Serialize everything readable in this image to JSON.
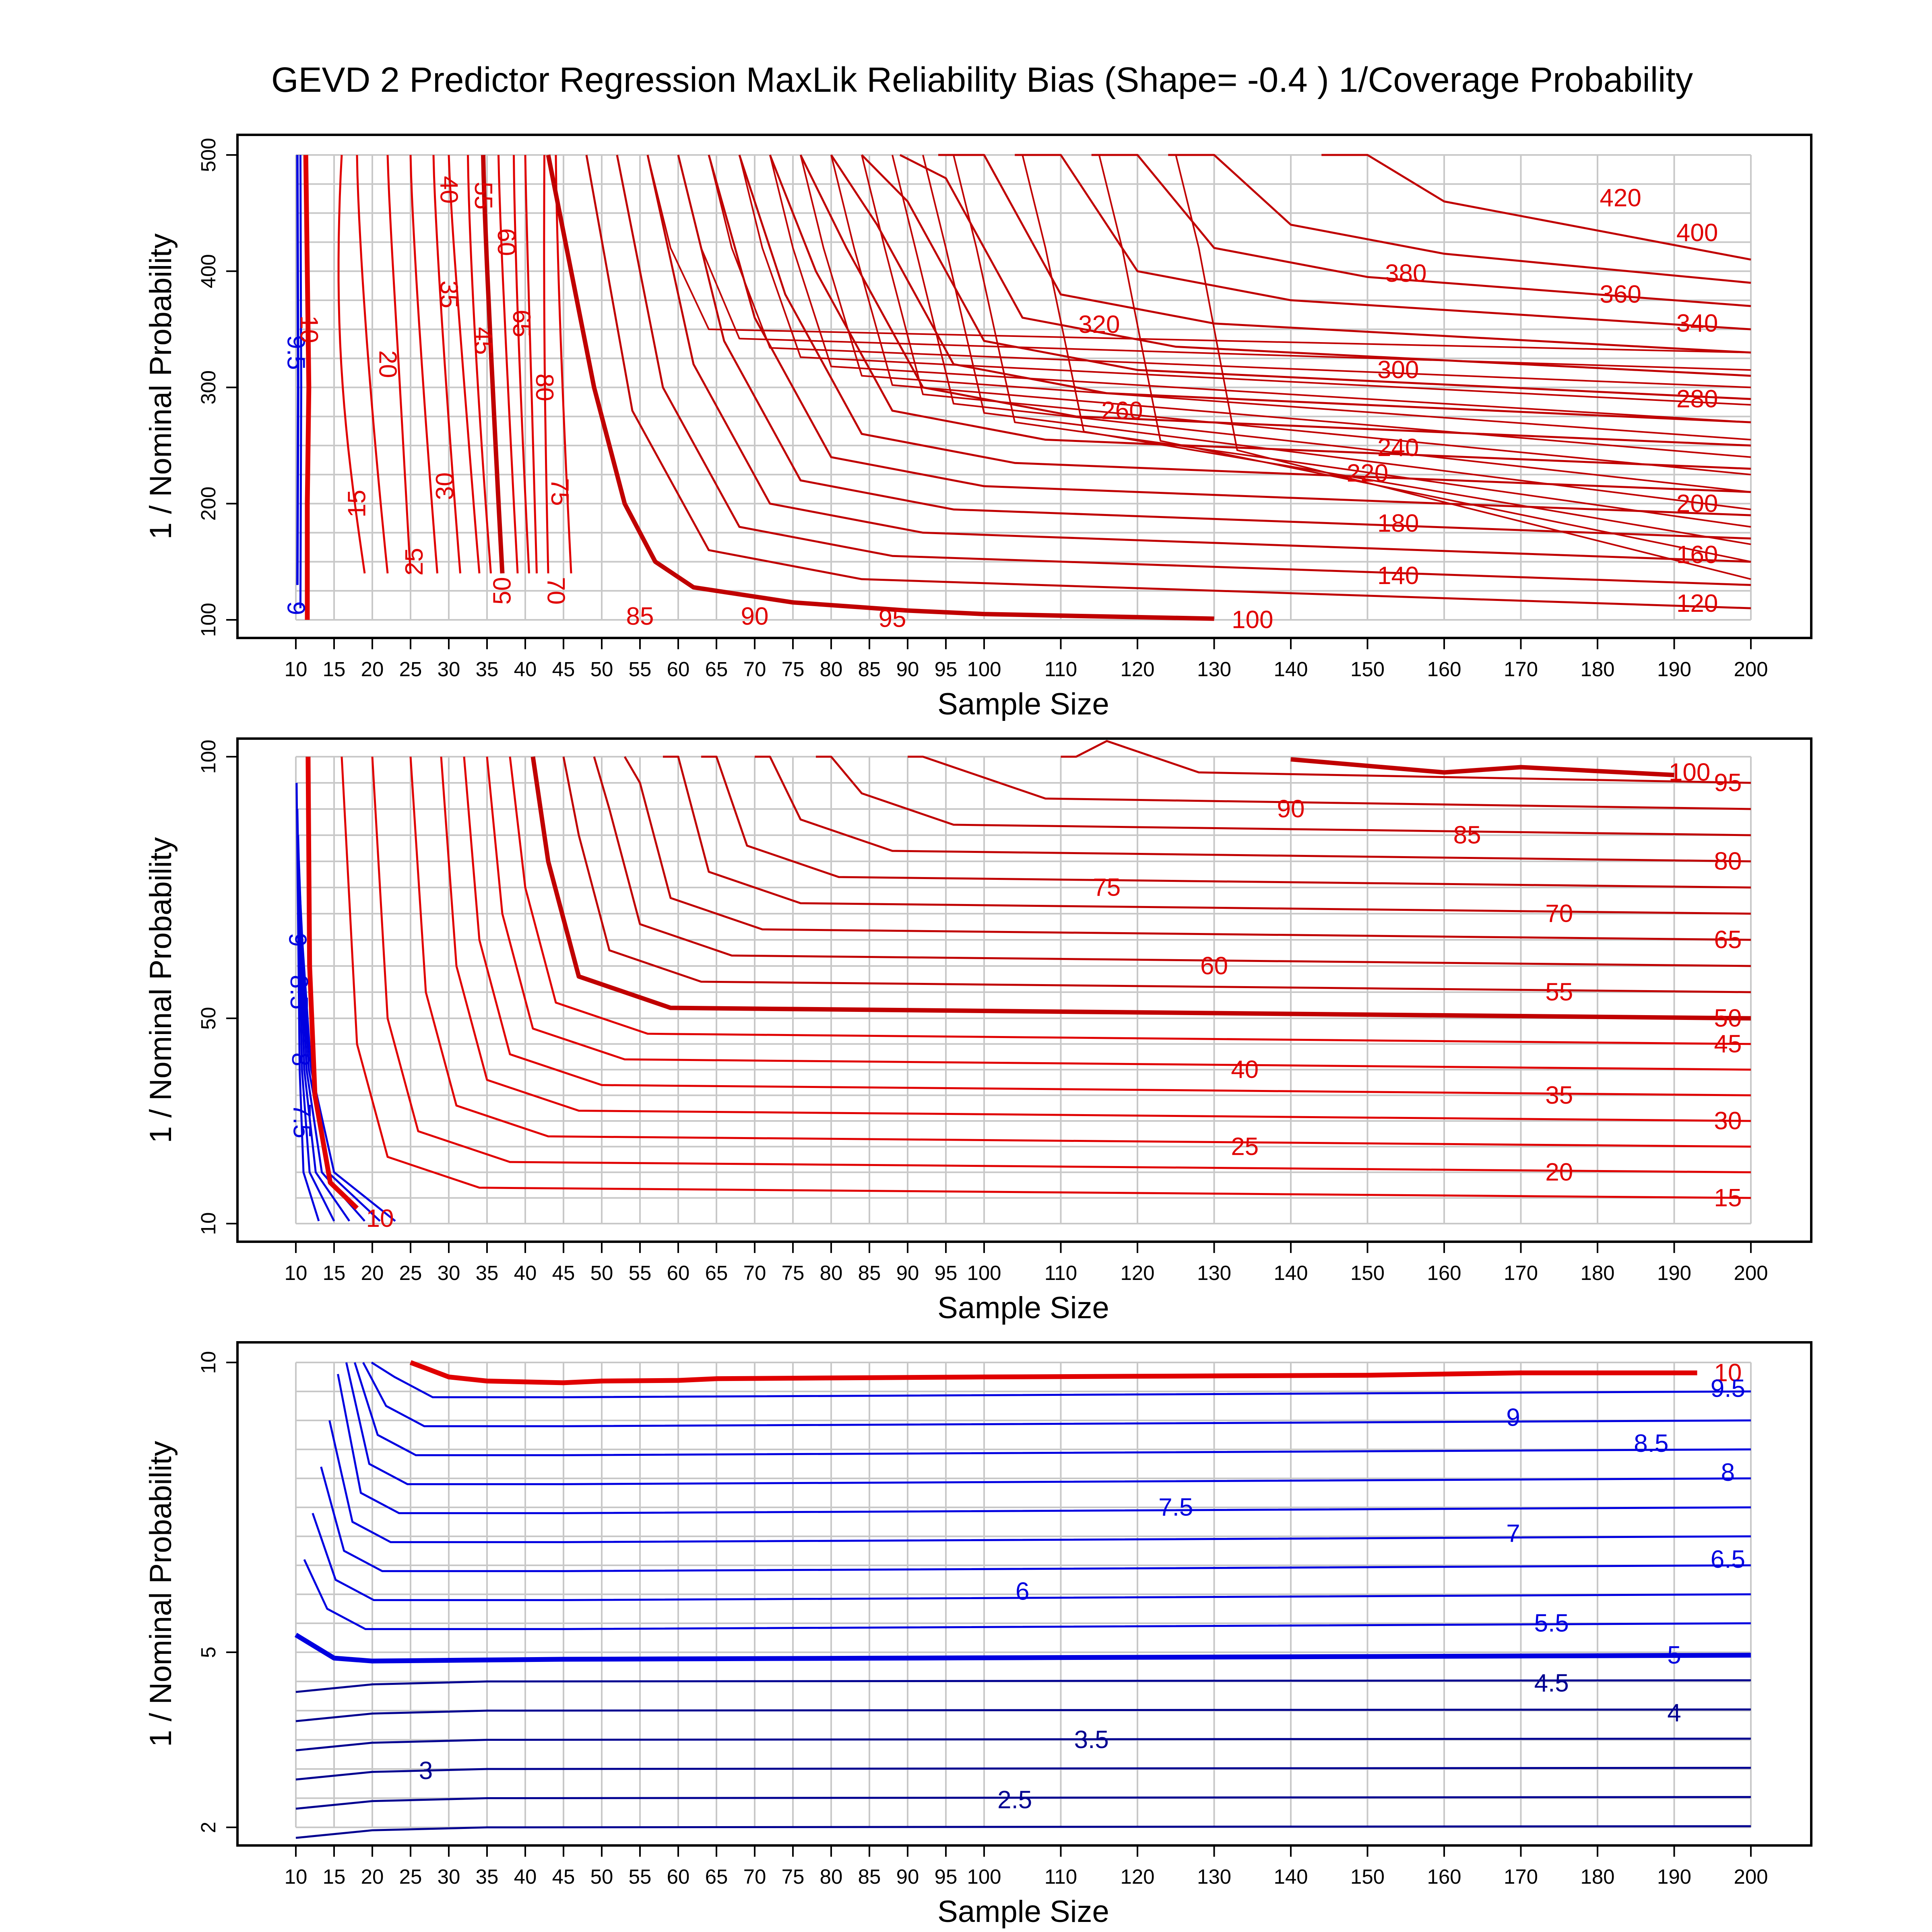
{
  "chart_data": [
    {
      "type": "contour",
      "title": "GEVD 2 Predictor Regression MaxLik Reliability Bias (Shape= -0.4 ) 1/Coverage Probability",
      "xlabel": "Sample Size",
      "ylabel": "1 / Nominal Probability",
      "x_ticks": [
        10,
        15,
        20,
        25,
        30,
        35,
        40,
        45,
        50,
        55,
        60,
        65,
        70,
        75,
        80,
        85,
        90,
        95,
        100,
        110,
        120,
        130,
        140,
        150,
        160,
        170,
        180,
        190,
        200
      ],
      "y_ticks": [
        100,
        200,
        300,
        400,
        500
      ],
      "ylim": [
        100,
        500
      ],
      "grid": true,
      "contour_levels": [
        9,
        9.5,
        10,
        15,
        20,
        25,
        30,
        35,
        40,
        45,
        50,
        55,
        60,
        65,
        70,
        75,
        80,
        85,
        90,
        95,
        100,
        120,
        140,
        160,
        180,
        200,
        220,
        240,
        260,
        280,
        300,
        320,
        340,
        360,
        380,
        400,
        420
      ],
      "highlighted_levels": [
        10,
        50,
        100
      ],
      "colors": {
        "above_10": "#e00000",
        "below_10": "#0000d0"
      }
    },
    {
      "type": "contour",
      "xlabel": "Sample Size",
      "ylabel": "1 / Nominal Probability",
      "x_ticks": [
        10,
        15,
        20,
        25,
        30,
        35,
        40,
        45,
        50,
        55,
        60,
        65,
        70,
        75,
        80,
        85,
        90,
        95,
        100,
        110,
        120,
        130,
        140,
        150,
        160,
        170,
        180,
        190,
        200
      ],
      "y_ticks": [
        10,
        50,
        100
      ],
      "ylim": [
        10,
        100
      ],
      "grid": true,
      "contour_levels": [
        7,
        7.5,
        8,
        8.5,
        9,
        9.5,
        10,
        15,
        20,
        25,
        30,
        35,
        40,
        45,
        50,
        55,
        60,
        65,
        70,
        75,
        80,
        85,
        90,
        95,
        100
      ],
      "highlighted_levels": [
        10,
        50,
        100
      ],
      "colors": {
        "above_10": "#e00000",
        "below_10": "#0000d0"
      }
    },
    {
      "type": "contour",
      "xlabel": "Sample Size",
      "ylabel": "1 / Nominal Probability",
      "x_ticks": [
        10,
        15,
        20,
        25,
        30,
        35,
        40,
        45,
        50,
        55,
        60,
        65,
        70,
        75,
        80,
        85,
        90,
        95,
        100,
        110,
        120,
        130,
        140,
        150,
        160,
        170,
        180,
        190,
        200
      ],
      "y_ticks": [
        2,
        5,
        10
      ],
      "ylim": [
        2,
        10
      ],
      "grid": true,
      "contour_levels": [
        2,
        2.5,
        3,
        3.5,
        4,
        4.5,
        5,
        5.5,
        6,
        6.5,
        7,
        7.5,
        8,
        8.5,
        9,
        9.5,
        10
      ],
      "highlighted_levels": [
        5,
        10
      ],
      "colors": {
        "above_10": "#e00000",
        "below_10": "#0000d0"
      }
    }
  ]
}
